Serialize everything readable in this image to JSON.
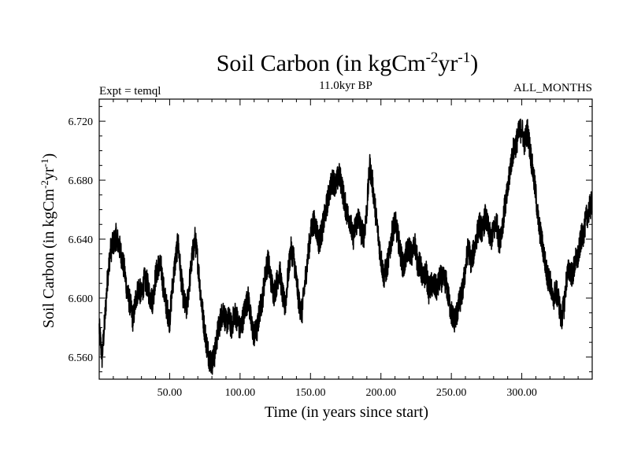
{
  "chart_data": {
    "type": "line",
    "title": {
      "main": "Soil Carbon (in kgCm",
      "exp1": "-2",
      "mid": "yr",
      "exp2": "-1",
      "end": ")"
    },
    "subtitle": "11.0kyr BP",
    "experiment_label": "Expt = temql",
    "months_label": "ALL_MONTHS",
    "xlabel": "Time (in years since start)",
    "ylabel": {
      "main": "Soil Carbon (in kgCm",
      "exp1": "-2",
      "mid": "yr",
      "exp2": "-1",
      "end": ")"
    },
    "xlim": [
      0,
      350
    ],
    "ylim": [
      6.545,
      6.735
    ],
    "x_ticks": [
      {
        "value": 50,
        "label": "50.00"
      },
      {
        "value": 100,
        "label": "100.00"
      },
      {
        "value": 150,
        "label": "150.00"
      },
      {
        "value": 200,
        "label": "200.00"
      },
      {
        "value": 250,
        "label": "250.00"
      },
      {
        "value": 300,
        "label": "300.00"
      }
    ],
    "y_ticks": [
      {
        "value": 6.56,
        "label": "6.560"
      },
      {
        "value": 6.6,
        "label": "6.600"
      },
      {
        "value": 6.64,
        "label": "6.640"
      },
      {
        "value": 6.68,
        "label": "6.680"
      },
      {
        "value": 6.72,
        "label": "6.720"
      }
    ],
    "series": [
      {
        "name": "Soil Carbon",
        "x": [
          0,
          1,
          2,
          4,
          6,
          8,
          10,
          12,
          14,
          16,
          18,
          20,
          22,
          24,
          26,
          28,
          30,
          32,
          34,
          36,
          38,
          40,
          42,
          44,
          46,
          48,
          50,
          52,
          54,
          56,
          58,
          60,
          62,
          64,
          66,
          68,
          70,
          72,
          74,
          76,
          78,
          80,
          82,
          84,
          86,
          88,
          90,
          92,
          94,
          96,
          98,
          100,
          102,
          104,
          106,
          108,
          110,
          112,
          114,
          116,
          118,
          120,
          122,
          124,
          126,
          128,
          130,
          132,
          134,
          136,
          138,
          140,
          142,
          144,
          146,
          148,
          150,
          152,
          154,
          156,
          158,
          160,
          162,
          164,
          166,
          168,
          170,
          172,
          174,
          176,
          178,
          180,
          182,
          184,
          186,
          188,
          190,
          192,
          194,
          196,
          198,
          200,
          202,
          204,
          206,
          208,
          210,
          212,
          214,
          216,
          218,
          220,
          222,
          224,
          226,
          228,
          230,
          232,
          234,
          236,
          238,
          240,
          242,
          244,
          246,
          248,
          250,
          252,
          254,
          256,
          258,
          260,
          262,
          264,
          266,
          268,
          270,
          272,
          274,
          276,
          278,
          280,
          282,
          284,
          286,
          288,
          290,
          292,
          294,
          296,
          298,
          300,
          302,
          304,
          306,
          308,
          310,
          312,
          314,
          316,
          318,
          320,
          322,
          324,
          326,
          328,
          330,
          332,
          334,
          336,
          338,
          340,
          342,
          344,
          346,
          348,
          350
        ],
        "y": [
          6.58,
          6.57,
          6.56,
          6.585,
          6.615,
          6.632,
          6.637,
          6.642,
          6.636,
          6.628,
          6.618,
          6.603,
          6.596,
          6.585,
          6.6,
          6.607,
          6.602,
          6.612,
          6.61,
          6.601,
          6.598,
          6.615,
          6.622,
          6.62,
          6.604,
          6.593,
          6.585,
          6.608,
          6.625,
          6.638,
          6.615,
          6.598,
          6.592,
          6.61,
          6.628,
          6.64,
          6.625,
          6.603,
          6.585,
          6.57,
          6.56,
          6.556,
          6.562,
          6.576,
          6.585,
          6.592,
          6.583,
          6.586,
          6.58,
          6.59,
          6.586,
          6.578,
          6.586,
          6.595,
          6.6,
          6.582,
          6.575,
          6.578,
          6.592,
          6.6,
          6.618,
          6.625,
          6.612,
          6.603,
          6.61,
          6.62,
          6.603,
          6.594,
          6.615,
          6.633,
          6.628,
          6.612,
          6.596,
          6.59,
          6.61,
          6.627,
          6.643,
          6.652,
          6.648,
          6.638,
          6.645,
          6.655,
          6.665,
          6.675,
          6.68,
          6.676,
          6.684,
          6.678,
          6.666,
          6.657,
          6.654,
          6.64,
          6.649,
          6.655,
          6.645,
          6.643,
          6.66,
          6.69,
          6.678,
          6.66,
          6.643,
          6.627,
          6.615,
          6.62,
          6.63,
          6.644,
          6.652,
          6.642,
          6.63,
          6.62,
          6.63,
          6.634,
          6.628,
          6.638,
          6.624,
          6.622,
          6.612,
          6.618,
          6.605,
          6.609,
          6.608,
          6.606,
          6.614,
          6.612,
          6.612,
          6.6,
          6.59,
          6.585,
          6.59,
          6.598,
          6.605,
          6.62,
          6.635,
          6.625,
          6.632,
          6.642,
          6.65,
          6.645,
          6.655,
          6.648,
          6.64,
          6.645,
          6.652,
          6.638,
          6.648,
          6.662,
          6.672,
          6.69,
          6.7,
          6.705,
          6.712,
          6.715,
          6.705,
          6.714,
          6.7,
          6.685,
          6.67,
          6.65,
          6.64,
          6.628,
          6.615,
          6.612,
          6.598,
          6.605,
          6.6,
          6.585,
          6.595,
          6.615,
          6.62,
          6.615,
          6.625,
          6.628,
          6.64,
          6.645,
          6.655,
          6.66,
          6.665
        ]
      }
    ]
  }
}
